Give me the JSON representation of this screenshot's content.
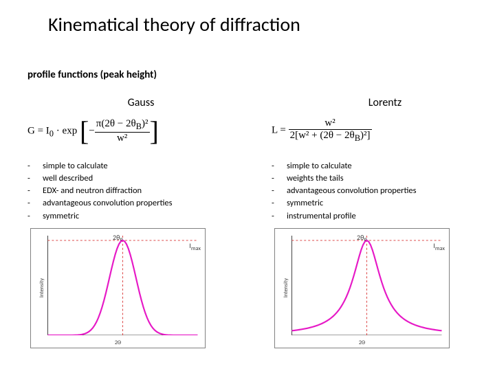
{
  "title": "Kinematical theory of diffraction",
  "subtitle": "profile functions (peak height)",
  "columns": [
    {
      "name": "Gauss",
      "formula": {
        "lhs": "G = I",
        "sub1": "0",
        "mid": " · exp",
        "num": "π(2θ − 2θ",
        "numsub": "B",
        "numend": ")²",
        "den": "w²",
        "prefix": "−"
      },
      "bullets": [
        "simple to calculate",
        "well described",
        "EDX- and neutron diffraction",
        "advantageous convolution properties",
        "symmetric"
      ],
      "chart": {
        "type": "line",
        "profile": "gauss",
        "curve_color": "#e619c6",
        "curve_width": 2.2,
        "axis_color": "#404040",
        "guide_color": "#d93030",
        "guide_dash": "3,3",
        "background_color": "#ffffff",
        "ylabel": "Intensity",
        "xlabel": "2Θ",
        "peak_label": "2θ",
        "peak_label_sub": "B",
        "imax_label": "I",
        "imax_label_sub": "max",
        "xlim": [
          -4,
          4
        ],
        "ylim": [
          0,
          1.05
        ],
        "npoints": 81
      }
    },
    {
      "name": "Lorentz",
      "formula": {
        "lhs": "L = ",
        "num": "w²",
        "den1": "2[w² + (2θ − 2θ",
        "densub": "B",
        "den2": ")²]"
      },
      "bullets": [
        "simple to calculate",
        "weights the tails",
        "advantageous convolution properties",
        "symmetric",
        "instrumental profile"
      ],
      "chart": {
        "type": "line",
        "profile": "lorentz",
        "curve_color": "#e619c6",
        "curve_width": 2.2,
        "axis_color": "#404040",
        "guide_color": "#d93030",
        "guide_dash": "3,3",
        "background_color": "#ffffff",
        "ylabel": "Intensity",
        "xlabel": "2Θ",
        "peak_label": "2θ",
        "peak_label_sub": "B",
        "imax_label": "I",
        "imax_label_sub": "max",
        "xlim": [
          -4,
          4
        ],
        "ylim": [
          0,
          1.05
        ],
        "npoints": 81,
        "gamma": 0.9
      }
    }
  ]
}
